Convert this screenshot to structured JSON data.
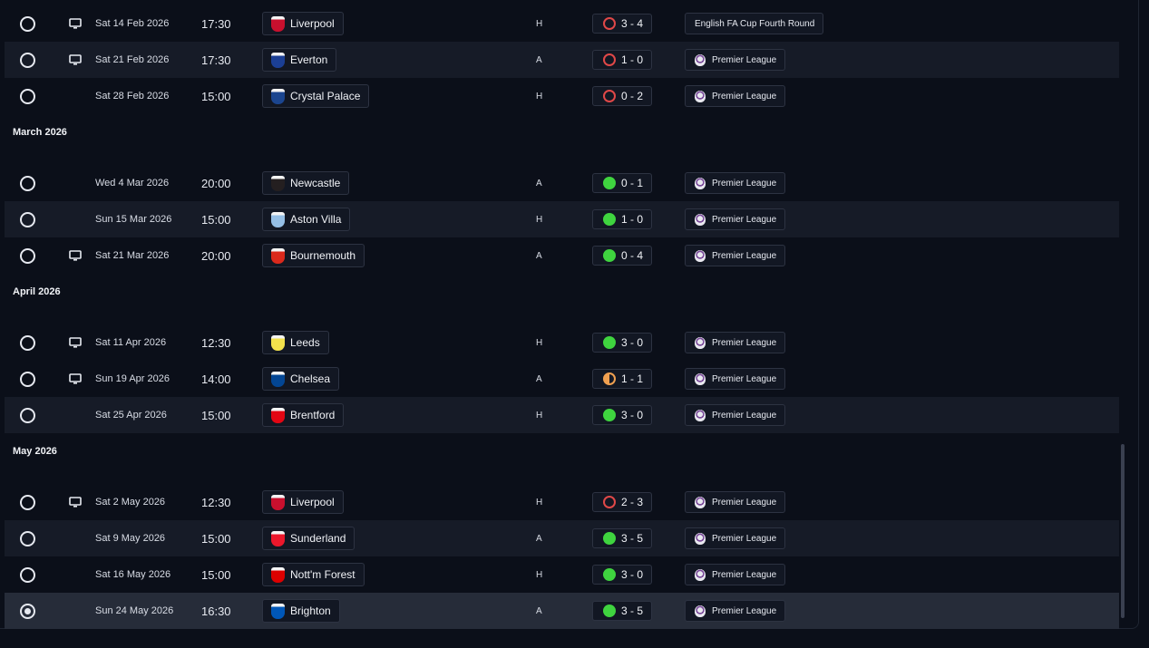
{
  "rows": [
    {
      "type": "match",
      "date": "Sat 14 Feb 2026",
      "time": "17:30",
      "tv": true,
      "team": "Liverpool",
      "badge": "liverpool-badge-icon",
      "ha": "H",
      "score": "3 - 4",
      "result": "loss",
      "competition": "English FA Cup Fourth Round",
      "plicon": false,
      "alt": false,
      "selected": false
    },
    {
      "type": "match",
      "date": "Sat 21 Feb 2026",
      "time": "17:30",
      "tv": true,
      "team": "Everton",
      "badge": "everton-badge-icon",
      "ha": "A",
      "score": "1 - 0",
      "result": "loss",
      "competition": "Premier League",
      "plicon": true,
      "alt": true,
      "selected": false
    },
    {
      "type": "match",
      "date": "Sat 28 Feb 2026",
      "time": "15:00",
      "tv": false,
      "team": "Crystal Palace",
      "badge": "crystal-palace-badge-icon",
      "ha": "H",
      "score": "0 - 2",
      "result": "loss",
      "competition": "Premier League",
      "plicon": true,
      "alt": false,
      "selected": false
    },
    {
      "type": "month",
      "label": "March 2026"
    },
    {
      "type": "match",
      "date": "Wed 4 Mar 2026",
      "time": "20:00",
      "tv": false,
      "team": "Newcastle",
      "badge": "newcastle-badge-icon",
      "ha": "A",
      "score": "0 - 1",
      "result": "win",
      "competition": "Premier League",
      "plicon": true,
      "alt": false,
      "selected": false
    },
    {
      "type": "match",
      "date": "Sun 15 Mar 2026",
      "time": "15:00",
      "tv": false,
      "team": "Aston Villa",
      "badge": "aston-villa-badge-icon",
      "ha": "H",
      "score": "1 - 0",
      "result": "win",
      "competition": "Premier League",
      "plicon": true,
      "alt": true,
      "selected": false
    },
    {
      "type": "match",
      "date": "Sat 21 Mar 2026",
      "time": "20:00",
      "tv": true,
      "team": "Bournemouth",
      "badge": "bournemouth-badge-icon",
      "ha": "A",
      "score": "0 - 4",
      "result": "win",
      "competition": "Premier League",
      "plicon": true,
      "alt": false,
      "selected": false
    },
    {
      "type": "month",
      "label": "April 2026"
    },
    {
      "type": "match",
      "date": "Sat 11 Apr 2026",
      "time": "12:30",
      "tv": true,
      "team": "Leeds",
      "badge": "leeds-badge-icon",
      "ha": "H",
      "score": "3 - 0",
      "result": "win",
      "competition": "Premier League",
      "plicon": true,
      "alt": false,
      "selected": false
    },
    {
      "type": "match",
      "date": "Sun 19 Apr 2026",
      "time": "14:00",
      "tv": true,
      "team": "Chelsea",
      "badge": "chelsea-badge-icon",
      "ha": "A",
      "score": "1 - 1",
      "result": "draw",
      "competition": "Premier League",
      "plicon": true,
      "alt": false,
      "selected": false
    },
    {
      "type": "match",
      "date": "Sat 25 Apr 2026",
      "time": "15:00",
      "tv": false,
      "team": "Brentford",
      "badge": "brentford-badge-icon",
      "ha": "H",
      "score": "3 - 0",
      "result": "win",
      "competition": "Premier League",
      "plicon": true,
      "alt": true,
      "selected": false
    },
    {
      "type": "month",
      "label": "May 2026"
    },
    {
      "type": "match",
      "date": "Sat 2 May 2026",
      "time": "12:30",
      "tv": true,
      "team": "Liverpool",
      "badge": "liverpool-badge-icon",
      "ha": "H",
      "score": "2 - 3",
      "result": "loss",
      "competition": "Premier League",
      "plicon": true,
      "alt": false,
      "selected": false
    },
    {
      "type": "match",
      "date": "Sat 9 May 2026",
      "time": "15:00",
      "tv": false,
      "team": "Sunderland",
      "badge": "sunderland-badge-icon",
      "ha": "A",
      "score": "3 - 5",
      "result": "win",
      "competition": "Premier League",
      "plicon": true,
      "alt": true,
      "selected": false
    },
    {
      "type": "match",
      "date": "Sat 16 May 2026",
      "time": "15:00",
      "tv": false,
      "team": "Nott'm Forest",
      "badge": "nottm-forest-badge-icon",
      "ha": "H",
      "score": "3 - 0",
      "result": "win",
      "competition": "Premier League",
      "plicon": true,
      "alt": false,
      "selected": false
    },
    {
      "type": "match",
      "date": "Sun 24 May 2026",
      "time": "16:30",
      "tv": false,
      "team": "Brighton",
      "badge": "brighton-badge-icon",
      "ha": "A",
      "score": "3 - 5",
      "result": "win",
      "competition": "Premier League",
      "plicon": true,
      "alt": false,
      "selected": true
    }
  ],
  "colors": {
    "win": "#3fd43f",
    "loss": "#e04848",
    "draw": "#f0a050",
    "liverpool": "#c8102e",
    "everton": "#1b3f95",
    "crystal-palace": "#1b458f",
    "newcastle": "#241f20",
    "aston-villa": "#95bfe5",
    "bournemouth": "#da291c",
    "leeds": "#f2e14c",
    "chelsea": "#034694",
    "brentford": "#e30613",
    "sunderland": "#eb172b",
    "nottm-forest": "#dd0000",
    "brighton": "#0057b8"
  },
  "scroll": {
    "position_fraction": 1.0
  }
}
